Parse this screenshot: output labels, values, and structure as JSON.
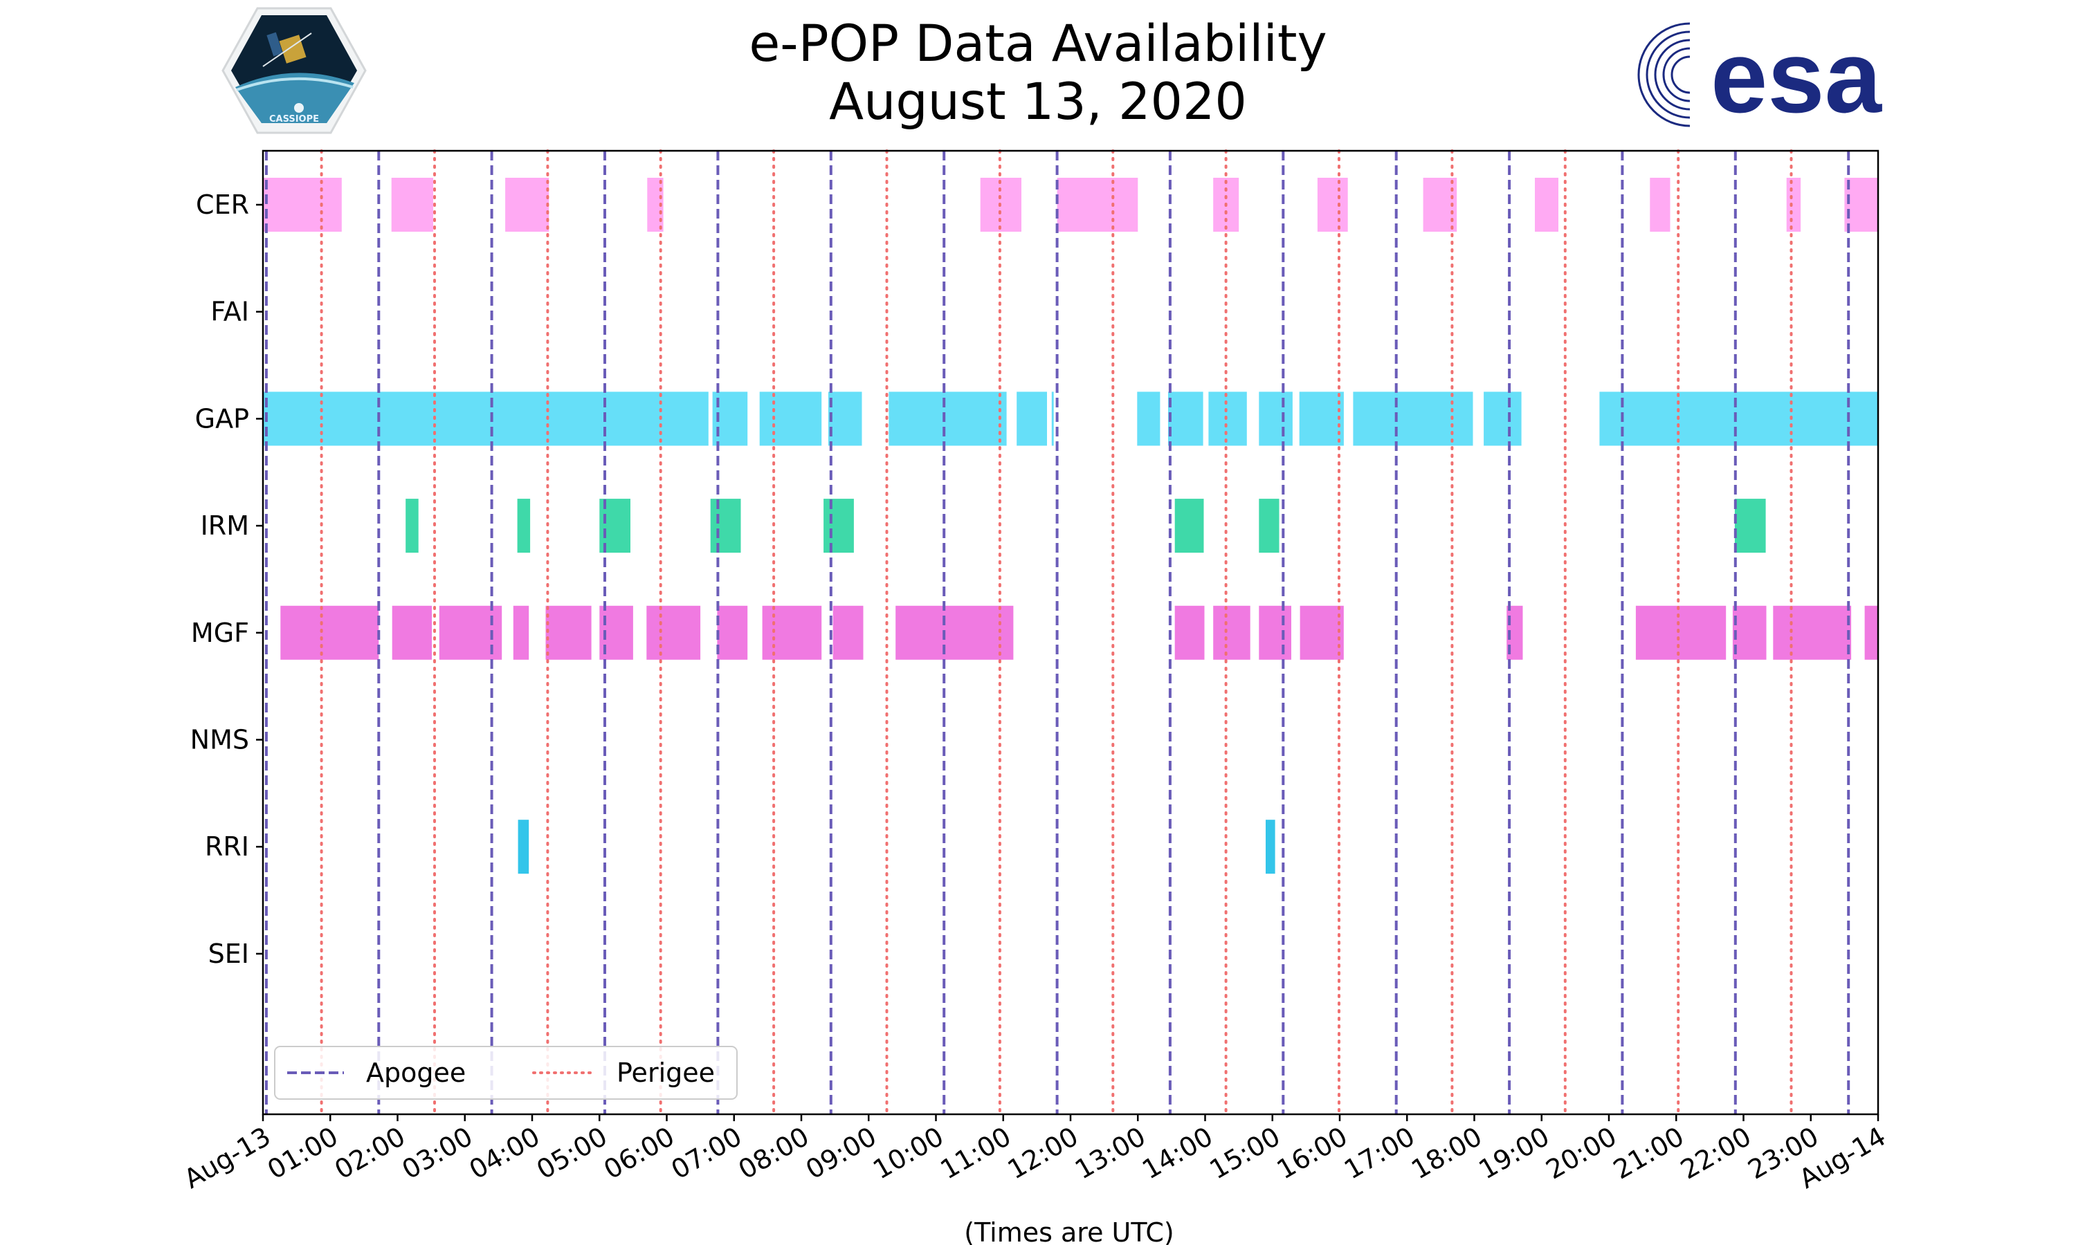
{
  "title_line1": "e-POP Data Availability",
  "title_line2": "August 13, 2020",
  "logos": {
    "left": {
      "name": "cassiope-mission-logo",
      "text": "CASSIOPE"
    },
    "right": {
      "name": "esa-logo",
      "text": "esa",
      "color": "#1b2a80"
    }
  },
  "chart_data": {
    "type": "timeline",
    "title": "e-POP Data Availability August 13, 2020",
    "xlabel": "(Times are UTC)",
    "xlim_hours": [
      0,
      24
    ],
    "x_tick_labels": [
      "Aug-13",
      "01:00",
      "02:00",
      "03:00",
      "04:00",
      "05:00",
      "06:00",
      "07:00",
      "08:00",
      "09:00",
      "10:00",
      "11:00",
      "12:00",
      "13:00",
      "14:00",
      "15:00",
      "16:00",
      "17:00",
      "18:00",
      "19:00",
      "20:00",
      "21:00",
      "22:00",
      "23:00",
      "Aug-14"
    ],
    "instruments": [
      "CER",
      "FAI",
      "GAP",
      "IRM",
      "MGF",
      "NMS",
      "RRI",
      "SEI"
    ],
    "colors": {
      "CER": "#ffaaf3",
      "FAI": "#ffaaf3",
      "GAP": "#66dff8",
      "IRM": "#3fd9a9",
      "MGF": "#f07ae1",
      "NMS": "#f07ae1",
      "RRI": "#33c5ea",
      "SEI": "#33c5ea",
      "apogee": "#6a5cb8",
      "perigee": "#f07070"
    },
    "intervals_hours": {
      "CER": [
        [
          0.0,
          1.17
        ],
        [
          1.91,
          2.53
        ],
        [
          3.6,
          4.25
        ],
        [
          5.71,
          5.95
        ],
        [
          10.66,
          11.27
        ],
        [
          11.8,
          13.0
        ],
        [
          14.12,
          14.5
        ],
        [
          15.67,
          16.12
        ],
        [
          17.24,
          17.74
        ],
        [
          18.9,
          19.25
        ],
        [
          20.61,
          20.91
        ],
        [
          22.64,
          22.85
        ],
        [
          23.5,
          24.0
        ]
      ],
      "FAI": [],
      "GAP": [
        [
          0.0,
          6.62
        ],
        [
          6.68,
          7.2
        ],
        [
          7.38,
          8.3
        ],
        [
          8.4,
          8.9
        ],
        [
          9.3,
          11.05
        ],
        [
          11.2,
          11.65
        ],
        [
          11.72,
          11.75
        ],
        [
          12.99,
          13.33
        ],
        [
          13.45,
          13.97
        ],
        [
          14.05,
          14.62
        ],
        [
          14.8,
          15.3
        ],
        [
          15.4,
          16.06
        ],
        [
          16.2,
          17.98
        ],
        [
          18.14,
          18.7
        ],
        [
          19.86,
          24.0
        ]
      ],
      "IRM": [
        [
          2.12,
          2.31
        ],
        [
          3.78,
          3.97
        ],
        [
          5.0,
          5.46
        ],
        [
          6.65,
          7.1
        ],
        [
          8.33,
          8.78
        ],
        [
          13.55,
          13.98
        ],
        [
          14.8,
          15.1
        ],
        [
          21.87,
          22.33
        ]
      ],
      "MGF": [
        [
          0.26,
          1.72
        ],
        [
          1.92,
          2.51
        ],
        [
          2.62,
          3.55
        ],
        [
          3.72,
          3.95
        ],
        [
          4.2,
          4.88
        ],
        [
          5.0,
          5.5
        ],
        [
          5.7,
          6.5
        ],
        [
          6.75,
          7.2
        ],
        [
          7.42,
          8.3
        ],
        [
          8.47,
          8.92
        ],
        [
          9.4,
          11.15
        ],
        [
          13.55,
          13.99
        ],
        [
          14.12,
          14.67
        ],
        [
          14.8,
          15.28
        ],
        [
          15.41,
          16.06
        ],
        [
          18.48,
          18.72
        ],
        [
          20.4,
          21.74
        ],
        [
          21.84,
          22.34
        ],
        [
          22.44,
          23.6
        ],
        [
          23.8,
          24.0
        ]
      ],
      "NMS": [],
      "RRI": [
        [
          3.79,
          3.95
        ],
        [
          14.9,
          15.04
        ]
      ],
      "SEI": []
    },
    "apogee_hours": [
      0.05,
      1.72,
      3.4,
      5.08,
      6.76,
      8.44,
      10.12,
      11.8,
      13.48,
      15.16,
      16.84,
      18.52,
      20.2,
      21.88,
      23.56
    ],
    "perigee_hours": [
      0.87,
      2.55,
      4.23,
      5.91,
      7.59,
      9.27,
      10.95,
      12.63,
      14.31,
      15.99,
      17.67,
      19.35,
      21.03,
      22.71
    ],
    "legend": {
      "position": "lower-left",
      "entries": [
        {
          "label": "Apogee",
          "style": "dashed"
        },
        {
          "label": "Perigee",
          "style": "dotted"
        }
      ]
    }
  }
}
